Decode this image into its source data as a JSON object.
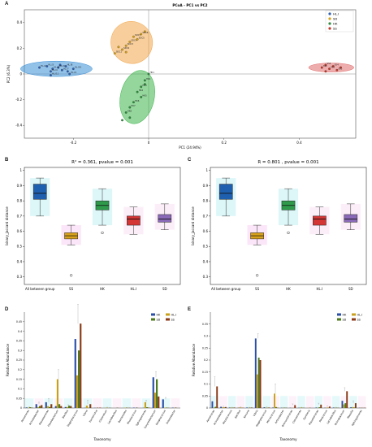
{
  "figure": {
    "panel_letters": [
      "A",
      "B",
      "C",
      "D",
      "E"
    ]
  },
  "chart_data": [
    {
      "id": "A",
      "type": "scatter",
      "title": "PCoA - PC1 vs PC2",
      "xlabel": "PC1 (24.94%)",
      "ylabel": "PC2 (6.3%)",
      "xlim": [
        -0.33,
        0.55
      ],
      "ylim": [
        -0.5,
        0.5
      ],
      "xticks": [
        -0.2,
        0.0,
        0.2,
        0.4
      ],
      "yticks": [
        -0.4,
        -0.2,
        0.0,
        0.2,
        0.4
      ],
      "legend": [
        "HL.I",
        "SD",
        "HK",
        "SS"
      ],
      "legend_position": "top-right",
      "colors": [
        "#2f5fb0",
        "#d4a017",
        "#2e8b3d",
        "#c0392b"
      ],
      "ellipse_colors": [
        "#3a8fd6",
        "#f0a64a",
        "#3cb44b",
        "#e06a6a"
      ],
      "groups": [
        {
          "name": "HL.I",
          "cx": -0.245,
          "cy": 0.04,
          "rx": 0.095,
          "ry": 0.06,
          "angle": 0,
          "points": [
            [
              -0.29,
              0.05
            ],
            [
              -0.27,
              0.06
            ],
            [
              -0.26,
              0.02
            ],
            [
              -0.255,
              0.04
            ],
            [
              -0.24,
              0.05
            ],
            [
              -0.23,
              0.03
            ],
            [
              -0.22,
              0.06
            ],
            [
              -0.21,
              0.0
            ],
            [
              -0.2,
              0.04
            ],
            [
              -0.26,
              -0.01
            ],
            [
              -0.235,
              0.07
            ],
            [
              -0.215,
              0.02
            ]
          ],
          "labels": [
            "HL.I2",
            "HL.I3",
            "HL.I4",
            "HL.I5",
            "HL.I6",
            "HL.I7",
            "HL.I8",
            "HL.I9",
            "HL.I10",
            "HL.I11"
          ]
        },
        {
          "name": "SD",
          "cx": -0.045,
          "cy": 0.245,
          "rx": 0.055,
          "ry": 0.165,
          "angle": -30,
          "points": [
            [
              -0.09,
              0.16
            ],
            [
              -0.07,
              0.19
            ],
            [
              -0.06,
              0.22
            ],
            [
              -0.05,
              0.25
            ],
            [
              -0.03,
              0.27
            ],
            [
              -0.02,
              0.31
            ],
            [
              -0.04,
              0.29
            ],
            [
              -0.01,
              0.33
            ],
            [
              -0.06,
              0.17
            ],
            [
              -0.08,
              0.21
            ]
          ],
          "labels": [
            "SDC1",
            "SDC2",
            "SDC3",
            "SDC4",
            "SDC5",
            "SDC6",
            "SDC7"
          ]
        },
        {
          "name": "HK",
          "cx": -0.03,
          "cy": -0.18,
          "rx": 0.045,
          "ry": 0.21,
          "angle": 12,
          "points": [
            [
              0.0,
              0.0
            ],
            [
              -0.01,
              -0.05
            ],
            [
              -0.02,
              -0.1
            ],
            [
              -0.03,
              -0.14
            ],
            [
              -0.02,
              -0.18
            ],
            [
              -0.04,
              -0.22
            ],
            [
              -0.05,
              -0.26
            ],
            [
              -0.06,
              -0.3
            ],
            [
              -0.05,
              -0.34
            ],
            [
              -0.07,
              -0.36
            ],
            [
              -0.01,
              -0.08
            ]
          ],
          "labels": [
            "HK1",
            "HK2",
            "HK3",
            "HK4",
            "HK5",
            "HK6",
            "HK7",
            "HK8"
          ]
        },
        {
          "name": "SS",
          "cx": 0.485,
          "cy": 0.05,
          "rx": 0.06,
          "ry": 0.035,
          "angle": 0,
          "points": [
            [
              0.46,
              0.05
            ],
            [
              0.47,
              0.07
            ],
            [
              0.48,
              0.04
            ],
            [
              0.49,
              0.06
            ],
            [
              0.5,
              0.03
            ],
            [
              0.51,
              0.05
            ],
            [
              0.47,
              0.02
            ]
          ],
          "labels": [
            "SS1",
            "SS2",
            "SS3",
            "SS4",
            "SS5"
          ]
        }
      ]
    },
    {
      "id": "B",
      "type": "box",
      "title": "R² = 0.361, pvalue = 0.001",
      "ylabel": "binary_jaccard distance",
      "ylim": [
        0.25,
        1.02
      ],
      "yticks": [
        0.3,
        0.4,
        0.5,
        0.6,
        0.7,
        0.8,
        0.9,
        1.0
      ],
      "categories": [
        "All between group",
        "SS",
        "HK",
        "HL.I",
        "SD"
      ],
      "colors": [
        "#1f5fb0",
        "#d9a21b",
        "#2e9a4a",
        "#d43535",
        "#8a6ab8"
      ],
      "halo_colors": [
        "#44d4dc",
        "#e76fd7",
        "#44d4dc",
        "#f0a0d8",
        "#f0a0d8"
      ],
      "boxes": [
        {
          "min": 0.7,
          "q1": 0.81,
          "median": 0.85,
          "q3": 0.91,
          "max": 0.95,
          "outliers": []
        },
        {
          "min": 0.51,
          "q1": 0.55,
          "median": 0.57,
          "q3": 0.59,
          "max": 0.64,
          "outliers": [
            0.31
          ]
        },
        {
          "min": 0.64,
          "q1": 0.74,
          "median": 0.77,
          "q3": 0.8,
          "max": 0.88,
          "outliers": [
            0.59
          ]
        },
        {
          "min": 0.58,
          "q1": 0.64,
          "median": 0.68,
          "q3": 0.7,
          "max": 0.76,
          "outliers": []
        },
        {
          "min": 0.61,
          "q1": 0.66,
          "median": 0.68,
          "q3": 0.71,
          "max": 0.78,
          "outliers": []
        }
      ]
    },
    {
      "id": "C",
      "type": "box",
      "title": "R = 0.801 , pvalue = 0.001",
      "ylabel": "binary_jaccard distance",
      "ylim": [
        0.25,
        1.02
      ],
      "yticks": [
        0.3,
        0.4,
        0.5,
        0.6,
        0.7,
        0.8,
        0.9,
        1.0
      ],
      "categories": [
        "All between group",
        "SS",
        "HK",
        "HL.I",
        "SD"
      ],
      "colors": [
        "#1f5fb0",
        "#d9a21b",
        "#2e9a4a",
        "#d43535",
        "#8a6ab8"
      ],
      "halo_colors": [
        "#44d4dc",
        "#e76fd7",
        "#44d4dc",
        "#f0a0d8",
        "#f0a0d8"
      ],
      "boxes": [
        {
          "min": 0.7,
          "q1": 0.81,
          "median": 0.85,
          "q3": 0.91,
          "max": 0.95,
          "outliers": []
        },
        {
          "min": 0.51,
          "q1": 0.55,
          "median": 0.57,
          "q3": 0.59,
          "max": 0.64,
          "outliers": [
            0.31
          ]
        },
        {
          "min": 0.64,
          "q1": 0.74,
          "median": 0.77,
          "q3": 0.8,
          "max": 0.88,
          "outliers": [
            0.59
          ]
        },
        {
          "min": 0.58,
          "q1": 0.64,
          "median": 0.68,
          "q3": 0.7,
          "max": 0.76,
          "outliers": []
        },
        {
          "min": 0.61,
          "q1": 0.66,
          "median": 0.68,
          "q3": 0.71,
          "max": 0.78,
          "outliers": []
        }
      ]
    },
    {
      "id": "D",
      "type": "bar",
      "xlabel": "Taxonomy",
      "ylabel": "Relative Abundance",
      "ylim": [
        0,
        0.5
      ],
      "yticks": [
        0.0,
        0.05,
        0.1,
        0.15,
        0.2,
        0.25,
        0.3,
        0.35,
        0.4,
        0.45
      ],
      "legend": [
        "HK",
        "HL.I",
        "SD",
        "SS"
      ],
      "legend_position": "top-right",
      "colors": [
        "#2a4fa8",
        "#c9a01c",
        "#4c7a1c",
        "#8a3a17"
      ],
      "categories": [
        "Aeromonas",
        "Acinetobacter",
        "Pseudomonas",
        "Flavobacterium",
        "Bacillus",
        "Staphylococcus",
        "Vibrio",
        "Escherichia",
        "Clostridium",
        "Lactobacillus",
        "Bacteroides",
        "Rhodococcus",
        "Sphingomonas",
        "Corynebacterium",
        "Streptococcus",
        "Enterobacter"
      ],
      "series": [
        {
          "name": "HK",
          "values": [
            0.003,
            0.02,
            0.03,
            0.01,
            0.005,
            0.36,
            0.001,
            0.001,
            0.0,
            0.0,
            0.0,
            0.002,
            0.001,
            0.16,
            0.045,
            0.002
          ]
        },
        {
          "name": "HL.I",
          "values": [
            0.002,
            0.005,
            0.01,
            0.15,
            0.005,
            0.17,
            0.012,
            0.001,
            0.002,
            0.0,
            0.002,
            0.0,
            0.03,
            0.08,
            0.002,
            0.001
          ]
        },
        {
          "name": "SD",
          "values": [
            0.004,
            0.01,
            0.005,
            0.02,
            0.012,
            0.3,
            0.001,
            0.0,
            0.0,
            0.001,
            0.0,
            0.001,
            0.004,
            0.15,
            0.002,
            0.001
          ]
        },
        {
          "name": "SS",
          "values": [
            0.002,
            0.015,
            0.02,
            0.01,
            0.01,
            0.44,
            0.02,
            0.002,
            0.001,
            0.0,
            0.001,
            0.0,
            0.002,
            0.06,
            0.001,
            0.0
          ]
        }
      ],
      "errors": [
        0.001,
        0.01,
        0.02,
        0.05,
        0.005,
        0.1,
        0.02,
        0.001,
        0.002,
        0.001,
        0.001,
        0.001,
        0.01,
        0.03,
        0.01,
        0.001
      ],
      "halo_colors": [
        "#44d4dc",
        "#f0a0d8",
        "#44d4dc",
        "#f0a0d8"
      ]
    },
    {
      "id": "E",
      "type": "bar",
      "xlabel": "Taxonomy",
      "ylabel": "Relative Abundance",
      "ylim": [
        0,
        0.4
      ],
      "yticks": [
        0.0,
        0.05,
        0.1,
        0.15,
        0.2,
        0.25,
        0.3,
        0.35
      ],
      "legend": [
        "HK",
        "HL.I",
        "SD",
        "SS"
      ],
      "legend_position": "top-right",
      "colors": [
        "#2a4fa8",
        "#c9a01c",
        "#4c7a1c",
        "#8a3a17"
      ],
      "categories": [
        "Aeromonas",
        "Acinetobacter",
        "Rhodococcus",
        "Bacillus",
        "Kocuria",
        "Vibrio",
        "Staphylococcus",
        "Micrococcus",
        "Arthrobacter",
        "Brevundimonas",
        "Comamonas",
        "Gordonia",
        "Pseudomonas",
        "Paracoccus",
        "Lactobacillus",
        "Ochrobactrum",
        "Massilia",
        "Sphingomonas"
      ],
      "series": [
        {
          "name": "HK",
          "values": [
            0.028,
            0.005,
            0.002,
            0.001,
            0.002,
            0.29,
            0.003,
            0.002,
            0.001,
            0.001,
            0.001,
            0.0,
            0.002,
            0.001,
            0.002,
            0.03,
            0.003,
            0.001
          ]
        },
        {
          "name": "HL.I",
          "values": [
            0.002,
            0.003,
            0.002,
            0.003,
            0.001,
            0.14,
            0.002,
            0.06,
            0.001,
            0.001,
            0.002,
            0.001,
            0.001,
            0.002,
            0.001,
            0.015,
            0.004,
            0.001
          ]
        },
        {
          "name": "SD",
          "values": [
            0.005,
            0.002,
            0.001,
            0.001,
            0.001,
            0.21,
            0.001,
            0.004,
            0.001,
            0.0,
            0.001,
            0.0,
            0.003,
            0.001,
            0.001,
            0.02,
            0.002,
            0.0
          ]
        },
        {
          "name": "SS",
          "values": [
            0.09,
            0.004,
            0.002,
            0.001,
            0.002,
            0.2,
            0.002,
            0.001,
            0.001,
            0.012,
            0.001,
            0.0,
            0.014,
            0.006,
            0.001,
            0.07,
            0.02,
            0.001
          ]
        }
      ],
      "errors": [
        0.04,
        0.002,
        0.001,
        0.001,
        0.001,
        0.02,
        0.001,
        0.04,
        0.001,
        0.005,
        0.001,
        0.001,
        0.006,
        0.003,
        0.001,
        0.015,
        0.01,
        0.001
      ],
      "halo_colors": [
        "#44d4dc",
        "#f0a0d8",
        "#44d4dc",
        "#f0a0d8"
      ]
    }
  ]
}
